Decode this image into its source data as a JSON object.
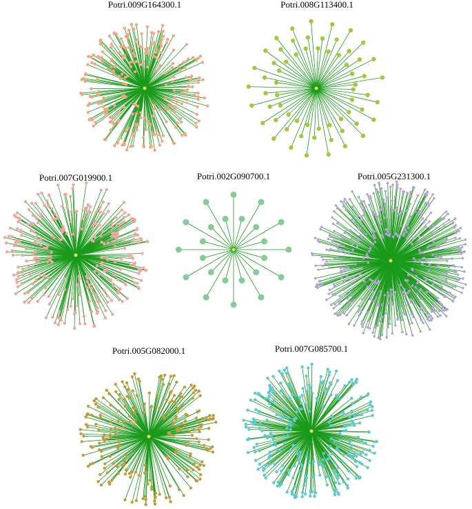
{
  "networks": [
    {
      "label": "Potri.009G164300.1"
    },
    {
      "label": "Potri.008G113400.1"
    },
    {
      "label": "Potri.007G019900.1"
    },
    {
      "label": "Potri.002G090700.1"
    },
    {
      "label": "Potri.005G231300.1"
    },
    {
      "label": "Potri.005G082000.1"
    },
    {
      "label": "Potri.007G085700.1"
    }
  ]
}
